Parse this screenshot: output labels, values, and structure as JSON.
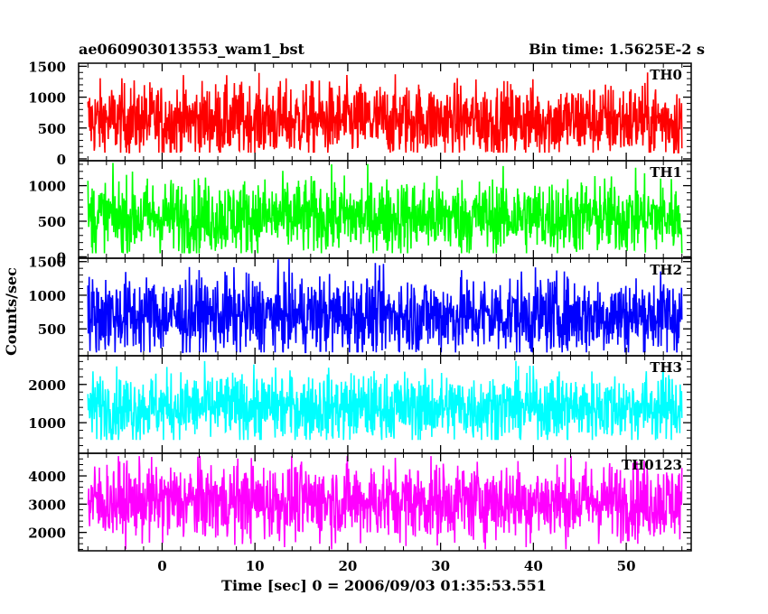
{
  "header": {
    "title": "ae060903013553_wam1_bst",
    "bin_time": "Bin time: 1.5625E-2 s"
  },
  "axes": {
    "xlabel": "Time [sec] 0 = 2006/09/03 01:35:53.551",
    "ylabel": "Counts/sec"
  },
  "chart_data": {
    "type": "line",
    "xlabel": "Time [sec] 0 = 2006/09/03 01:35:53.551",
    "ylabel": "Counts/sec",
    "xlim": [
      -9,
      57
    ],
    "x_ticks": [
      0,
      10,
      20,
      30,
      40,
      50
    ],
    "data_x_range": [
      -8,
      56
    ],
    "bin_time_s": 0.015625,
    "panels": [
      {
        "name": "TH0",
        "color": "#ff0000",
        "ylim": [
          -30,
          1550
        ],
        "y_ticks": [
          0,
          500,
          1000,
          1500
        ],
        "series_min": 100,
        "series_max": 1550,
        "series_mean": 620
      },
      {
        "name": "TH1",
        "color": "#00ff00",
        "ylim": [
          -20,
          1350
        ],
        "y_ticks": [
          0,
          500,
          1000
        ],
        "series_min": 50,
        "series_max": 1320,
        "series_mean": 560
      },
      {
        "name": "TH2",
        "color": "#0000ff",
        "ylim": [
          100,
          1550
        ],
        "y_ticks": [
          500,
          1000,
          1500
        ],
        "series_min": 150,
        "series_max": 1550,
        "series_mean": 700
      },
      {
        "name": "TH3",
        "color": "#00ffff",
        "ylim": [
          200,
          2750
        ],
        "y_ticks": [
          1000,
          2000
        ],
        "series_min": 550,
        "series_max": 2700,
        "series_mean": 1400
      },
      {
        "name": "TH0123",
        "color": "#ff00ff",
        "ylim": [
          1350,
          4800
        ],
        "y_ticks": [
          2000,
          3000,
          4000
        ],
        "series_min": 1400,
        "series_max": 4700,
        "series_mean": 3100
      }
    ]
  }
}
